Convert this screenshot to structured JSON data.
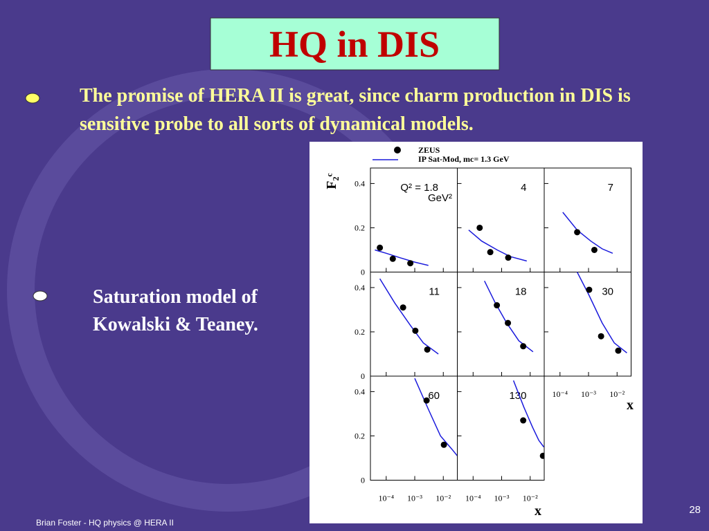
{
  "title": "HQ in DIS",
  "bullets": [
    "The promise of HERA II is great, since charm production in DIS is sensitive probe to all sorts of dynamical models.",
    "Saturation model of Kowalski & Teaney."
  ],
  "footer": "Brian Foster - HQ physics @ HERA II",
  "page_number": "28",
  "figure": {
    "type": "scatter",
    "log_x": true,
    "legend": [
      {
        "name": "ZEUS",
        "color": "#000000"
      },
      {
        "name": "IP Sat-Mod,  mc= 1.3 GeV",
        "color": "#1a1adc"
      }
    ],
    "y_label": "F₂ᶜ",
    "x_label": "x",
    "xlim": [
      2.8e-05,
      0.031
    ],
    "ylim": [
      0,
      0.47
    ],
    "yticks": [
      0,
      0.2,
      0.4
    ],
    "xticks": [
      {
        "value": 0.0001,
        "label": "10⁻⁴"
      },
      {
        "value": 0.001,
        "label": "10⁻³"
      },
      {
        "value": 0.01,
        "label": "10⁻²"
      }
    ],
    "panels": [
      {
        "label": "Q² = 1.8",
        "unit": "GeV²",
        "x": [
          6e-05,
          0.00017,
          0.0007
        ],
        "values": [
          0.11,
          0.06,
          0.04
        ],
        "model_x": [
          4e-05,
          0.0001,
          0.0003,
          0.001,
          0.003
        ],
        "model": [
          0.1,
          0.085,
          0.065,
          0.045,
          0.03
        ]
      },
      {
        "label": "4",
        "x": [
          0.00017,
          0.0004,
          0.0017
        ],
        "values": [
          0.2,
          0.09,
          0.065
        ],
        "model_x": [
          7e-05,
          0.0002,
          0.0007,
          0.002,
          0.0076
        ],
        "model": [
          0.19,
          0.14,
          0.1,
          0.07,
          0.05
        ]
      },
      {
        "label": "7",
        "x": [
          0.0004,
          0.0016
        ],
        "values": [
          0.18,
          0.1
        ],
        "model_x": [
          0.000125,
          0.0004,
          0.0012,
          0.003,
          0.007
        ],
        "model": [
          0.27,
          0.19,
          0.14,
          0.105,
          0.085
        ]
      },
      {
        "label": "11",
        "x": [
          0.00039,
          0.00105,
          0.00275
        ],
        "values": [
          0.31,
          0.205,
          0.12
        ],
        "model_x": [
          6e-05,
          0.0002,
          0.0007,
          0.002,
          0.0067
        ],
        "model": [
          0.44,
          0.33,
          0.23,
          0.15,
          0.1
        ]
      },
      {
        "label": "18",
        "x": [
          0.00068,
          0.00166,
          0.0057
        ],
        "values": [
          0.32,
          0.24,
          0.135
        ],
        "model_x": [
          0.00025,
          0.0006,
          0.0015,
          0.004,
          0.0126
        ],
        "model": [
          0.43,
          0.33,
          0.24,
          0.16,
          0.11
        ]
      },
      {
        "label": "30",
        "x": [
          0.00105,
          0.00275,
          0.011
        ],
        "values": [
          0.39,
          0.18,
          0.115
        ],
        "model_x": [
          0.0004,
          0.001,
          0.003,
          0.008,
          0.022
        ],
        "model": [
          0.47,
          0.37,
          0.24,
          0.15,
          0.105
        ]
      },
      {
        "label": "60",
        "x": [
          0.0026,
          0.0105
        ],
        "values": [
          0.36,
          0.16
        ],
        "model_x": [
          0.001,
          0.003,
          0.008,
          0.02,
          0.031
        ],
        "model": [
          0.46,
          0.32,
          0.2,
          0.14,
          0.11
        ]
      },
      {
        "label": "130",
        "x": [
          0.0057,
          0.028
        ],
        "values": [
          0.27,
          0.11
        ],
        "model_x": [
          0.0026,
          0.006,
          0.012,
          0.02,
          0.03
        ],
        "model": [
          0.45,
          0.33,
          0.24,
          0.18,
          0.15
        ]
      }
    ]
  }
}
